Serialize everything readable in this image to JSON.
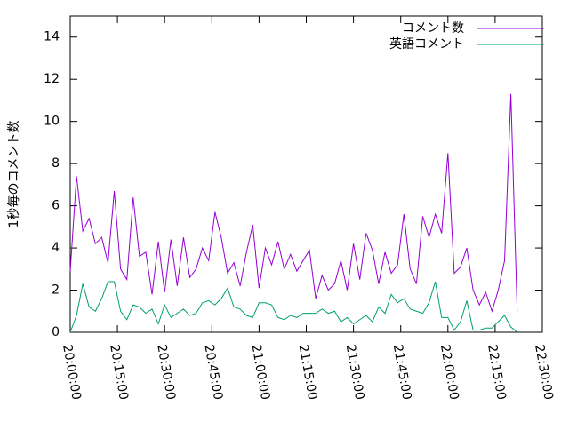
{
  "chart_data": {
    "type": "line",
    "y_label": "1秒毎のコメント数",
    "x": [
      "20:00:00",
      "20:02:00",
      "20:04:00",
      "20:06:00",
      "20:08:00",
      "20:10:00",
      "20:12:00",
      "20:14:00",
      "20:16:00",
      "20:18:00",
      "20:20:00",
      "20:22:00",
      "20:24:00",
      "20:26:00",
      "20:28:00",
      "20:30:00",
      "20:32:00",
      "20:34:00",
      "20:36:00",
      "20:38:00",
      "20:40:00",
      "20:42:00",
      "20:44:00",
      "20:46:00",
      "20:48:00",
      "20:50:00",
      "20:52:00",
      "20:54:00",
      "20:56:00",
      "20:58:00",
      "21:00:00",
      "21:02:00",
      "21:04:00",
      "21:06:00",
      "21:08:00",
      "21:10:00",
      "21:12:00",
      "21:14:00",
      "21:16:00",
      "21:18:00",
      "21:20:00",
      "21:22:00",
      "21:24:00",
      "21:26:00",
      "21:28:00",
      "21:30:00",
      "21:32:00",
      "21:34:00",
      "21:36:00",
      "21:38:00",
      "21:40:00",
      "21:42:00",
      "21:44:00",
      "21:46:00",
      "21:48:00",
      "21:50:00",
      "21:52:00",
      "21:54:00",
      "21:56:00",
      "21:58:00",
      "22:00:00",
      "22:02:00",
      "22:04:00",
      "22:06:00",
      "22:08:00",
      "22:10:00",
      "22:12:00",
      "22:14:00",
      "22:16:00",
      "22:18:00",
      "22:20:00",
      "22:22:00"
    ],
    "series": [
      {
        "name": "コメント数",
        "color": "#9400d3",
        "values": [
          2.9,
          7.4,
          4.8,
          5.4,
          4.2,
          4.5,
          3.3,
          6.7,
          3.0,
          2.5,
          6.4,
          3.6,
          3.8,
          1.8,
          4.3,
          1.9,
          4.4,
          2.2,
          4.5,
          2.6,
          3.0,
          4.0,
          3.4,
          5.7,
          4.5,
          2.8,
          3.3,
          2.2,
          3.8,
          5.1,
          2.1,
          4.0,
          3.2,
          4.3,
          3.0,
          3.7,
          2.9,
          3.4,
          3.9,
          1.6,
          2.7,
          2.0,
          2.3,
          3.4,
          2.0,
          4.2,
          2.5,
          4.7,
          3.9,
          2.3,
          3.8,
          2.8,
          3.2,
          5.6,
          3.0,
          2.3,
          5.5,
          4.5,
          5.6,
          4.7,
          8.5,
          2.8,
          3.1,
          4.0,
          2.0,
          1.3,
          1.9,
          1.0,
          2.0,
          3.4,
          11.3,
          1.0
        ]
      },
      {
        "name": "英語コメント",
        "color": "#009e73",
        "values": [
          0,
          0.8,
          2.3,
          1.2,
          1.0,
          1.6,
          2.4,
          2.4,
          1.0,
          0.6,
          1.3,
          1.2,
          0.9,
          1.1,
          0.4,
          1.3,
          0.7,
          0.9,
          1.1,
          0.8,
          0.9,
          1.4,
          1.5,
          1.3,
          1.6,
          2.1,
          1.2,
          1.1,
          0.8,
          0.7,
          1.4,
          1.4,
          1.3,
          0.7,
          0.6,
          0.8,
          0.7,
          0.9,
          0.9,
          0.9,
          1.1,
          0.9,
          1.0,
          0.5,
          0.7,
          0.4,
          0.6,
          0.8,
          0.5,
          1.2,
          0.9,
          1.8,
          1.4,
          1.6,
          1.1,
          1.0,
          0.9,
          1.4,
          2.4,
          0.7,
          0.7,
          0.1,
          0.5,
          1.5,
          0.1,
          0.1,
          0.2,
          0.2,
          0.5,
          0.8,
          0.25,
          0
        ]
      }
    ],
    "xlim": [
      "20:00:00",
      "22:30:00"
    ],
    "xticks": [
      "20:00:00",
      "20:15:00",
      "20:30:00",
      "20:45:00",
      "21:00:00",
      "21:15:00",
      "21:30:00",
      "21:45:00",
      "22:00:00",
      "22:15:00",
      "22:30:00"
    ],
    "ylim": [
      0,
      15
    ],
    "yticks": [
      0,
      2,
      4,
      6,
      8,
      10,
      12,
      14
    ],
    "legend": "top-right"
  }
}
